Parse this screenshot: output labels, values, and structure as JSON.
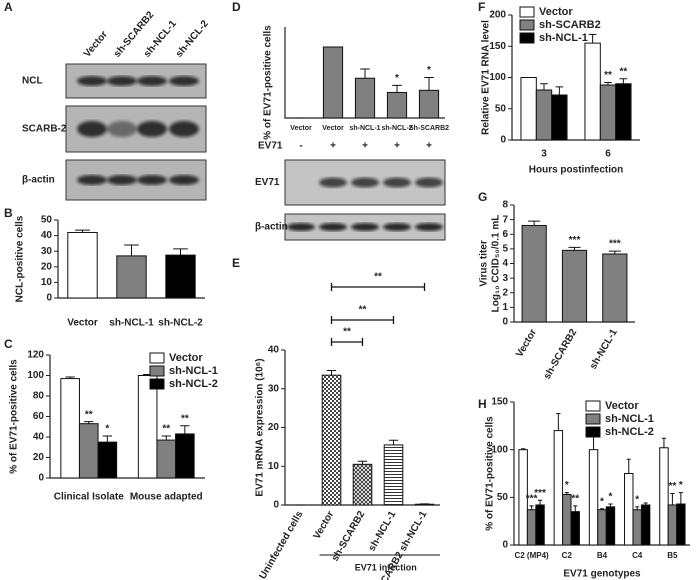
{
  "blots": [
    {
      "panel": "A",
      "lanes": [
        "Vector",
        "sh-SCARB2",
        "sh-NCL-1",
        "sh-NCL-2"
      ],
      "rows": [
        "NCL",
        "SCARB-2",
        "β-actin"
      ]
    },
    {
      "rows": [
        "EV71",
        "β-actin"
      ],
      "treatment_label": "EV71",
      "treatment": [
        "-",
        "+",
        "+",
        "+",
        "+"
      ]
    }
  ],
  "chart_data": [
    {
      "type": "bar",
      "panel": "B",
      "ylabel": "NCL-positive cells",
      "categories": [
        "Vector",
        "sh-NCL-1",
        "sh-NCL-2"
      ],
      "values": [
        42,
        27,
        27.5
      ],
      "errors": [
        1.5,
        7,
        4
      ],
      "colors": [
        "#ffffff",
        "#808080",
        "#000000"
      ],
      "ylim": [
        0,
        50
      ],
      "yticks": [
        0,
        10,
        20,
        30,
        40,
        50
      ]
    },
    {
      "type": "bar",
      "panel": "C",
      "ylabel": "% of EV71-positive cells",
      "categories": [
        "Clinical Isolate",
        "Mouse adapted"
      ],
      "series": [
        {
          "name": "Vector",
          "color": "#ffffff",
          "values": [
            97,
            100
          ],
          "errors": [
            1.5,
            1
          ],
          "annotations": [
            null,
            null
          ]
        },
        {
          "name": "sh-NCL-1",
          "color": "#808080",
          "values": [
            53,
            37
          ],
          "errors": [
            2,
            4
          ],
          "annotations": [
            "**",
            "**"
          ]
        },
        {
          "name": "sh-NCL-2",
          "color": "#000000",
          "values": [
            35,
            43
          ],
          "errors": [
            6,
            8
          ],
          "annotations": [
            "*",
            "**"
          ]
        }
      ],
      "ylim": [
        0,
        120
      ],
      "yticks": [
        0,
        20,
        40,
        60,
        80,
        100,
        120
      ]
    },
    {
      "type": "bar",
      "panel": "D",
      "ylabel": "% of EV71-positive cells",
      "categories": [
        "Vector",
        "Vector",
        "sh-NCL-1",
        "sh-NCL-2",
        "Sh-SCARB2"
      ],
      "values": [
        0,
        100,
        56,
        36,
        39
      ],
      "errors": [
        0,
        0,
        13,
        10,
        18
      ],
      "color": "#808080",
      "annotations": [
        null,
        null,
        null,
        "*",
        "*"
      ]
    },
    {
      "type": "bar",
      "panel": "E",
      "ylabel": "EV71 mRNA expression (10⁶)",
      "categories": [
        "Uninfected cells",
        "Vector",
        "sh-SCARB2",
        "sh-NCL-1",
        "sh-SCARB2 sh-NCL-1"
      ],
      "values": [
        0,
        33.5,
        10.5,
        15.5,
        0.2
      ],
      "errors": [
        0,
        1.2,
        0.8,
        1.2,
        0.1
      ],
      "color": "#ffffff",
      "ylim": [
        0,
        40
      ],
      "yticks": [
        0,
        10,
        20,
        30,
        40
      ],
      "group_label": "EV71 infection",
      "brackets": [
        "**",
        "**",
        "**"
      ]
    },
    {
      "type": "bar",
      "panel": "F",
      "ylabel": "Relative EV71 RNA level",
      "xlabel": "Hours postinfection",
      "categories": [
        "3",
        "6"
      ],
      "series": [
        {
          "name": "Vector",
          "color": "#ffffff",
          "values": [
            100,
            155
          ],
          "errors": [
            0,
            14
          ],
          "annotations": [
            null,
            null
          ]
        },
        {
          "name": "sh-SCARB2",
          "color": "#808080",
          "values": [
            80,
            88
          ],
          "errors": [
            10,
            4
          ],
          "annotations": [
            null,
            "**"
          ]
        },
        {
          "name": "sh-NCL-1",
          "color": "#000000",
          "values": [
            72,
            90
          ],
          "errors": [
            13,
            8
          ],
          "annotations": [
            null,
            "**"
          ]
        }
      ],
      "ylim": [
        0,
        200
      ],
      "yticks": [
        0,
        50,
        100,
        150,
        200
      ]
    },
    {
      "type": "bar",
      "panel": "G",
      "ylabel": [
        "Virus titer",
        "Log₁₀ CCID₅₀/0.1 mL"
      ],
      "categories": [
        "Vector",
        "sh-SCARB2",
        "sh-NCL-1"
      ],
      "values": [
        6.6,
        4.9,
        4.65
      ],
      "errors": [
        0.3,
        0.2,
        0.2
      ],
      "color": "#808080",
      "annotations": [
        null,
        "***",
        "***"
      ],
      "ylim": [
        0,
        8
      ],
      "yticks": [
        0,
        1,
        2,
        3,
        4,
        5,
        6,
        7,
        8
      ]
    },
    {
      "type": "bar",
      "panel": "H",
      "ylabel": "% of EV71-positive cells",
      "xlabel": "EV71 genotypes",
      "categories": [
        "C2 (MP4)",
        "C2",
        "B4",
        "C4",
        "B5"
      ],
      "series": [
        {
          "name": "Vector",
          "color": "#ffffff",
          "values": [
            100,
            120,
            100,
            75,
            102
          ],
          "errors": [
            1,
            18,
            15,
            15,
            10
          ],
          "annotations": [
            null,
            null,
            null,
            null,
            null
          ]
        },
        {
          "name": "sh-NCL-1",
          "color": "#808080",
          "values": [
            37,
            53,
            37,
            37,
            42
          ],
          "errors": [
            4,
            2,
            1,
            3,
            12
          ],
          "annotations": [
            "***",
            "*",
            "*",
            "*",
            "**"
          ]
        },
        {
          "name": "sh-NCL-2",
          "color": "#000000",
          "values": [
            42,
            35,
            40,
            42,
            43
          ],
          "errors": [
            5,
            6,
            3,
            2,
            12
          ],
          "annotations": [
            "***",
            "**",
            "*",
            null,
            "*"
          ]
        }
      ],
      "ylim": [
        0,
        150
      ],
      "yticks": [
        0,
        50,
        100,
        150
      ]
    }
  ]
}
